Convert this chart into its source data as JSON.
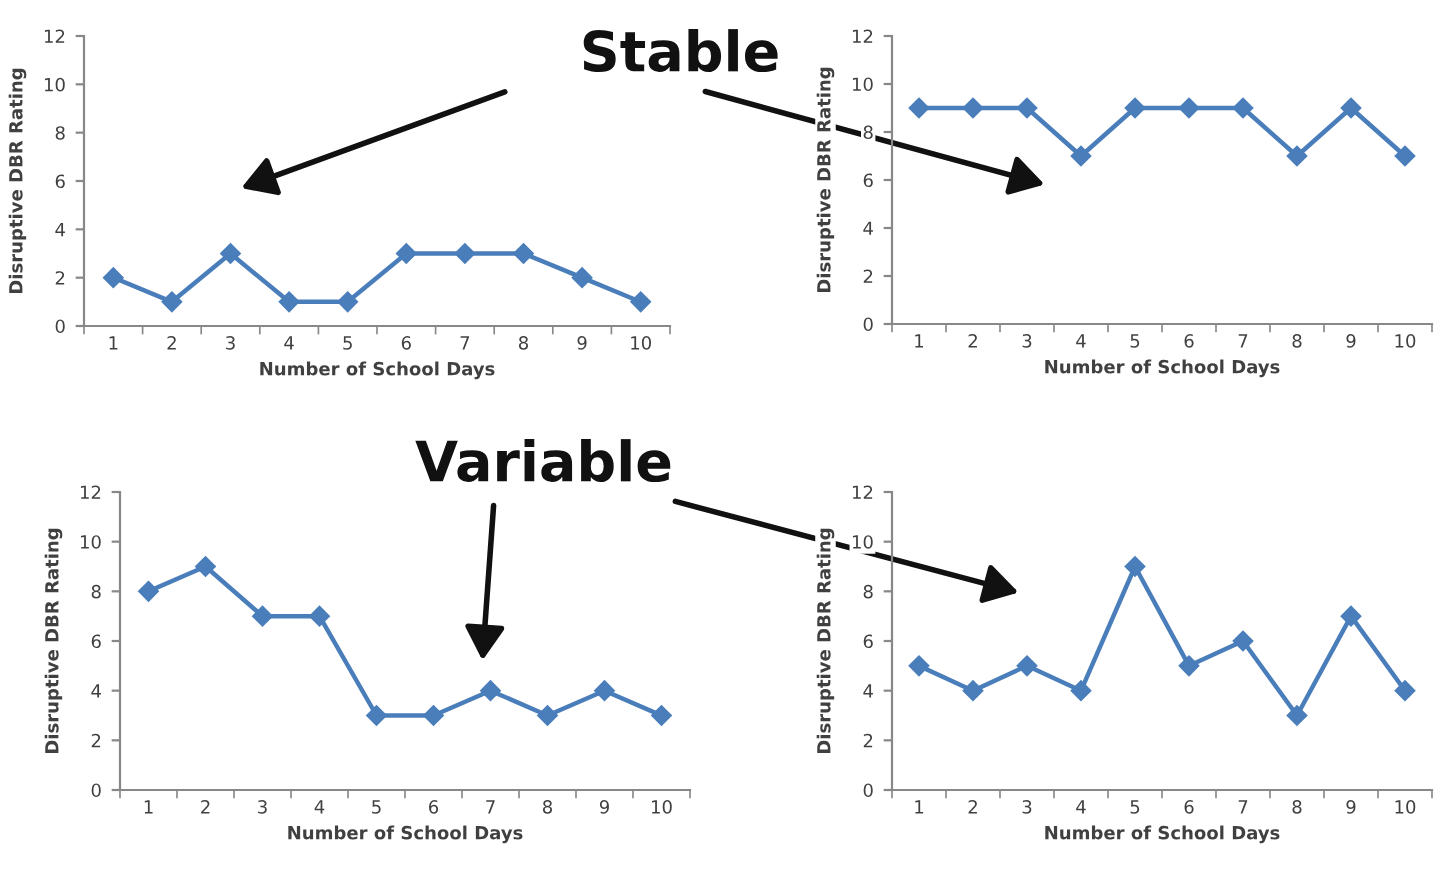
{
  "chart_data": [
    {
      "type": "line",
      "annotations": [
        "Stable"
      ],
      "xlabel": "Number of School Days",
      "ylabel": "Disruptive DBR Rating",
      "categories": [
        "1",
        "2",
        "3",
        "4",
        "5",
        "6",
        "7",
        "8",
        "9",
        "10"
      ],
      "values": [
        2,
        1,
        3,
        1,
        1,
        3,
        3,
        3,
        2,
        1
      ],
      "color": "#4a7ebb",
      "marker": "diamond",
      "ylim": [
        0,
        12
      ],
      "yticks": [
        0,
        2,
        4,
        6,
        8,
        10,
        12
      ],
      "grid": false,
      "legend": false
    },
    {
      "type": "line",
      "xlabel": "Number of School Days",
      "ylabel": "Disruptive DBR Rating",
      "categories": [
        "1",
        "2",
        "3",
        "4",
        "5",
        "6",
        "7",
        "8",
        "9",
        "10"
      ],
      "values": [
        9,
        9,
        9,
        7,
        9,
        9,
        9,
        7,
        9,
        7
      ],
      "color": "#4a7ebb",
      "marker": "diamond",
      "ylim": [
        0,
        12
      ],
      "yticks": [
        0,
        2,
        4,
        6,
        8,
        10,
        12
      ],
      "grid": false,
      "legend": false
    },
    {
      "type": "line",
      "annotations": [
        "Variable"
      ],
      "xlabel": "Number of School Days",
      "ylabel": "Disruptive DBR Rating",
      "categories": [
        "1",
        "2",
        "3",
        "4",
        "5",
        "6",
        "7",
        "8",
        "9",
        "10"
      ],
      "values": [
        8,
        9,
        7,
        7,
        3,
        3,
        4,
        3,
        4,
        3
      ],
      "color": "#4a7ebb",
      "marker": "diamond",
      "ylim": [
        0,
        12
      ],
      "yticks": [
        0,
        2,
        4,
        6,
        8,
        10,
        12
      ],
      "grid": false,
      "legend": false
    },
    {
      "type": "line",
      "xlabel": "Number of School Days",
      "ylabel": "Disruptive DBR Rating",
      "categories": [
        "1",
        "2",
        "3",
        "4",
        "5",
        "6",
        "7",
        "8",
        "9",
        "10"
      ],
      "values": [
        5,
        4,
        5,
        4,
        9,
        5,
        6,
        3,
        7,
        4
      ],
      "color": "#4a7ebb",
      "marker": "diamond",
      "ylim": [
        0,
        12
      ],
      "yticks": [
        0,
        2,
        4,
        6,
        8,
        10,
        12
      ],
      "grid": false,
      "legend": false
    }
  ]
}
